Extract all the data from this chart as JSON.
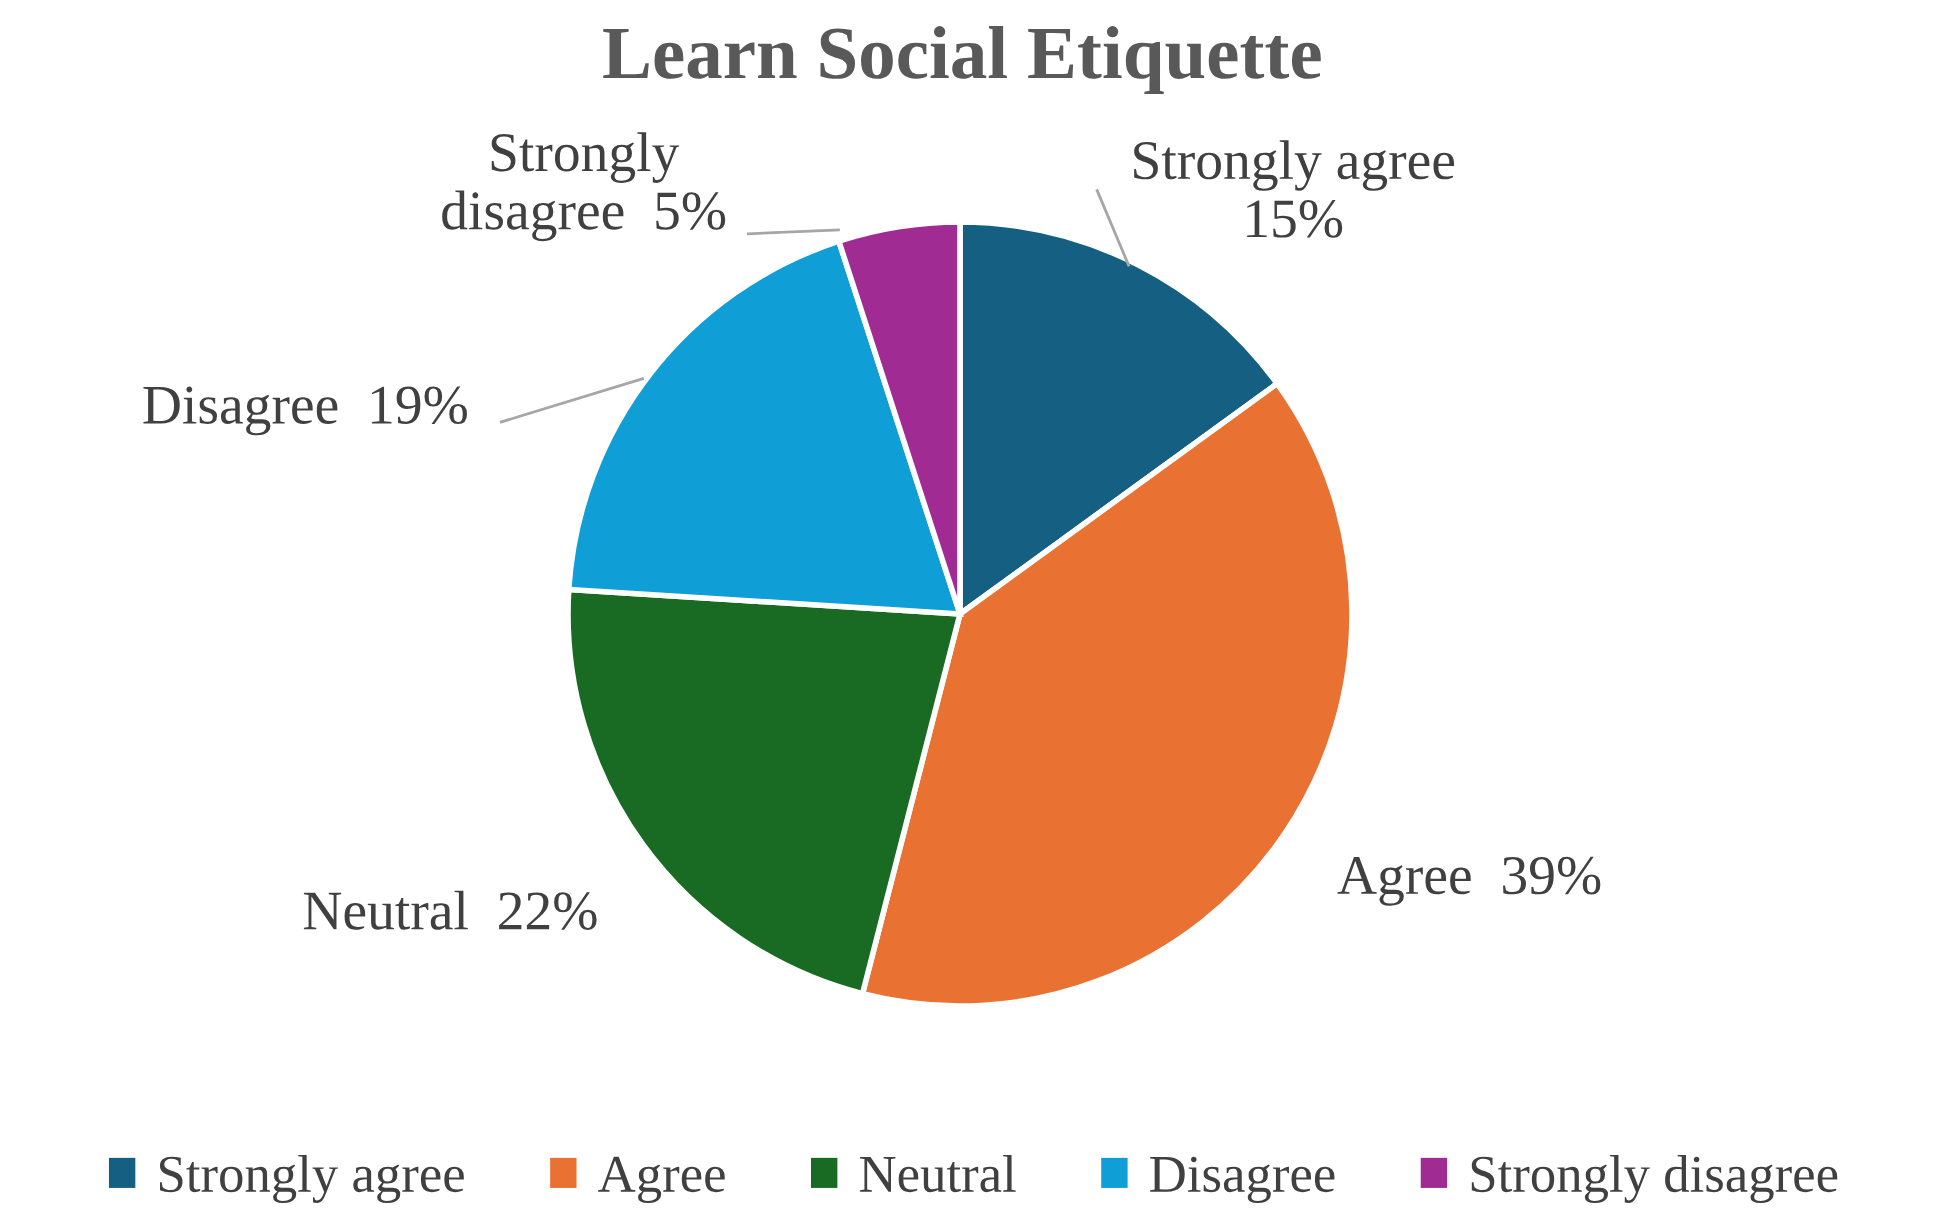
{
  "chart_data": {
    "type": "pie",
    "title": "Learn Social Etiquette",
    "categories": [
      "Strongly agree",
      "Agree",
      "Neutral",
      "Disagree",
      "Strongly disagree"
    ],
    "values": [
      15,
      39,
      22,
      19,
      5
    ],
    "value_labels": [
      "15%",
      "39%",
      "22%",
      "19%",
      "5%"
    ],
    "colors": [
      "#156082",
      "#e97132",
      "#196b24",
      "#0f9ed5",
      "#a02b93"
    ],
    "legend": "bottom"
  }
}
